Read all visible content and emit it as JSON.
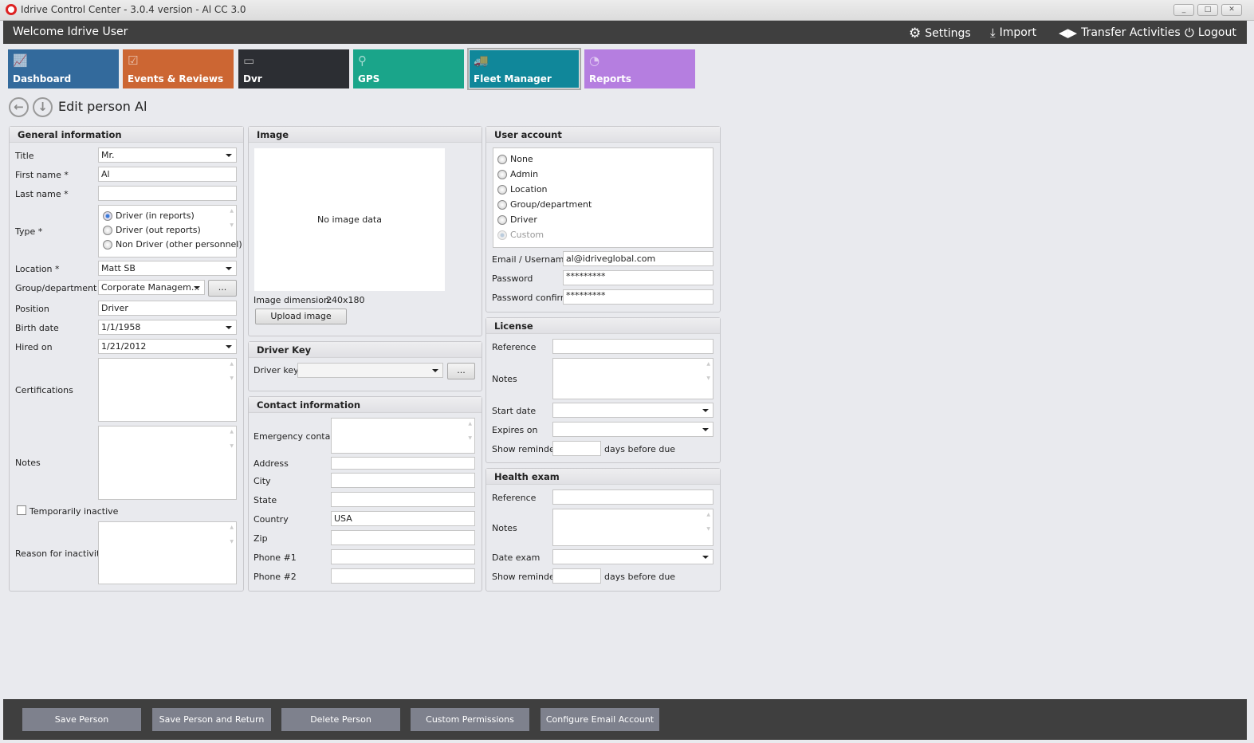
{
  "window": {
    "title": "Idrive Control Center - 3.0.4 version - Al CC 3.0",
    "minimize": "_",
    "maximize": "□",
    "close": "✕"
  },
  "header": {
    "welcome": "Welcome Idrive User",
    "links": [
      {
        "label": "Settings",
        "icon": "gears-icon"
      },
      {
        "label": "Import",
        "icon": "download-icon"
      },
      {
        "label": "Transfer Activities",
        "icon": "transfer-icon"
      },
      {
        "label": "Logout",
        "icon": "power-icon"
      }
    ]
  },
  "tiles": [
    {
      "label": "Dashboard",
      "color": "#336a9c"
    },
    {
      "label": "Events & Reviews",
      "color": "#cc6633"
    },
    {
      "label": "Dvr",
      "color": "#2c2e33"
    },
    {
      "label": "GPS",
      "color": "#1aa58a"
    },
    {
      "label": "Fleet Manager",
      "color": "#10879a",
      "active": true
    },
    {
      "label": "Reports",
      "color": "#b57ee0"
    }
  ],
  "page": {
    "title": "Edit person Al"
  },
  "general": {
    "heading": "General information",
    "title_label": "Title",
    "title_value": "Mr.",
    "first_label": "First name *",
    "first_value": "Al",
    "last_label": "Last name *",
    "last_value": "",
    "type_label": "Type *",
    "type_options": [
      "Driver (in reports)",
      "Driver (out reports)",
      "Non Driver (other personnel)"
    ],
    "type_selected": "Driver (in reports)",
    "location_label": "Location *",
    "location_value": "Matt SB",
    "group_label": "Group/department",
    "group_value": "Corporate Managem...",
    "group_btn": "...",
    "position_label": "Position",
    "position_value": "Driver",
    "birth_label": "Birth date",
    "birth_value": "1/1/1958",
    "hired_label": "Hired on",
    "hired_value": "1/21/2012",
    "cert_label": "Certifications",
    "notes_label": "Notes",
    "inactive_label": "Temporarily inactive",
    "inactive_checked": false,
    "reason_label": "Reason for inactivity"
  },
  "image": {
    "heading": "Image",
    "placeholder": "No image data",
    "dim_label": "Image dimension:",
    "dim_value": "240x180",
    "upload": "Upload image"
  },
  "driver_key": {
    "heading": "Driver Key",
    "label": "Driver key",
    "value": "",
    "btn": "..."
  },
  "contact": {
    "heading": "Contact information",
    "emergency": "Emergency contact",
    "address": "Address",
    "city": "City",
    "state": "State",
    "country": "Country",
    "country_value": "USA",
    "zip": "Zip",
    "phone1": "Phone #1",
    "phone2": "Phone #2"
  },
  "account": {
    "heading": "User account",
    "options": [
      "None",
      "Admin",
      "Location",
      "Group/department",
      "Driver",
      "Custom"
    ],
    "email_label": "Email / Username",
    "email_value": "al@idriveglobal.com",
    "password_label": "Password",
    "password_value": "*********",
    "confirm_label": "Password confirm",
    "confirm_value": "*********"
  },
  "license": {
    "heading": "License",
    "reference": "Reference",
    "notes": "Notes",
    "start": "Start date",
    "expires": "Expires on",
    "reminder": "Show reminder",
    "days": "days before due"
  },
  "health": {
    "heading": "Health exam",
    "reference": "Reference",
    "notes": "Notes",
    "date": "Date exam",
    "reminder": "Show reminder",
    "days": "days before due"
  },
  "footer": {
    "buttons": [
      "Save Person",
      "Save Person and Return",
      "Delete Person",
      "Custom Permissions",
      "Configure Email Account"
    ]
  }
}
